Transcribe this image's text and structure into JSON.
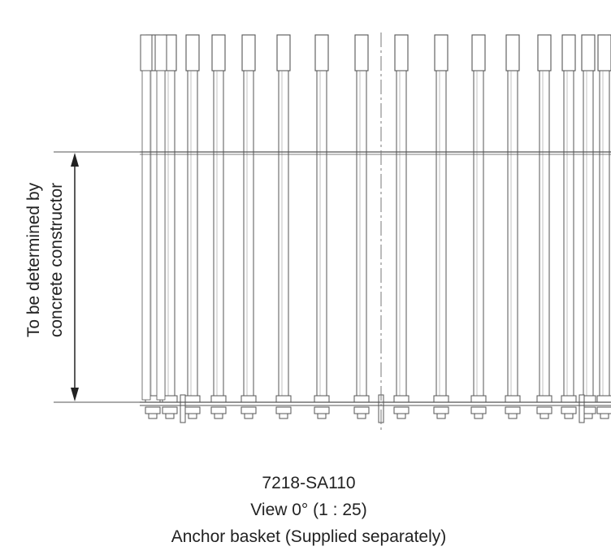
{
  "dimension": {
    "line1": "To be determined by",
    "line2": "concrete constructor"
  },
  "caption": {
    "drawing_no": "7218-SA110",
    "view": "View 0° (1 : 25)",
    "title": "Anchor basket (Supplied separately)"
  },
  "colors": {
    "line": "#555555",
    "text": "#222222"
  }
}
